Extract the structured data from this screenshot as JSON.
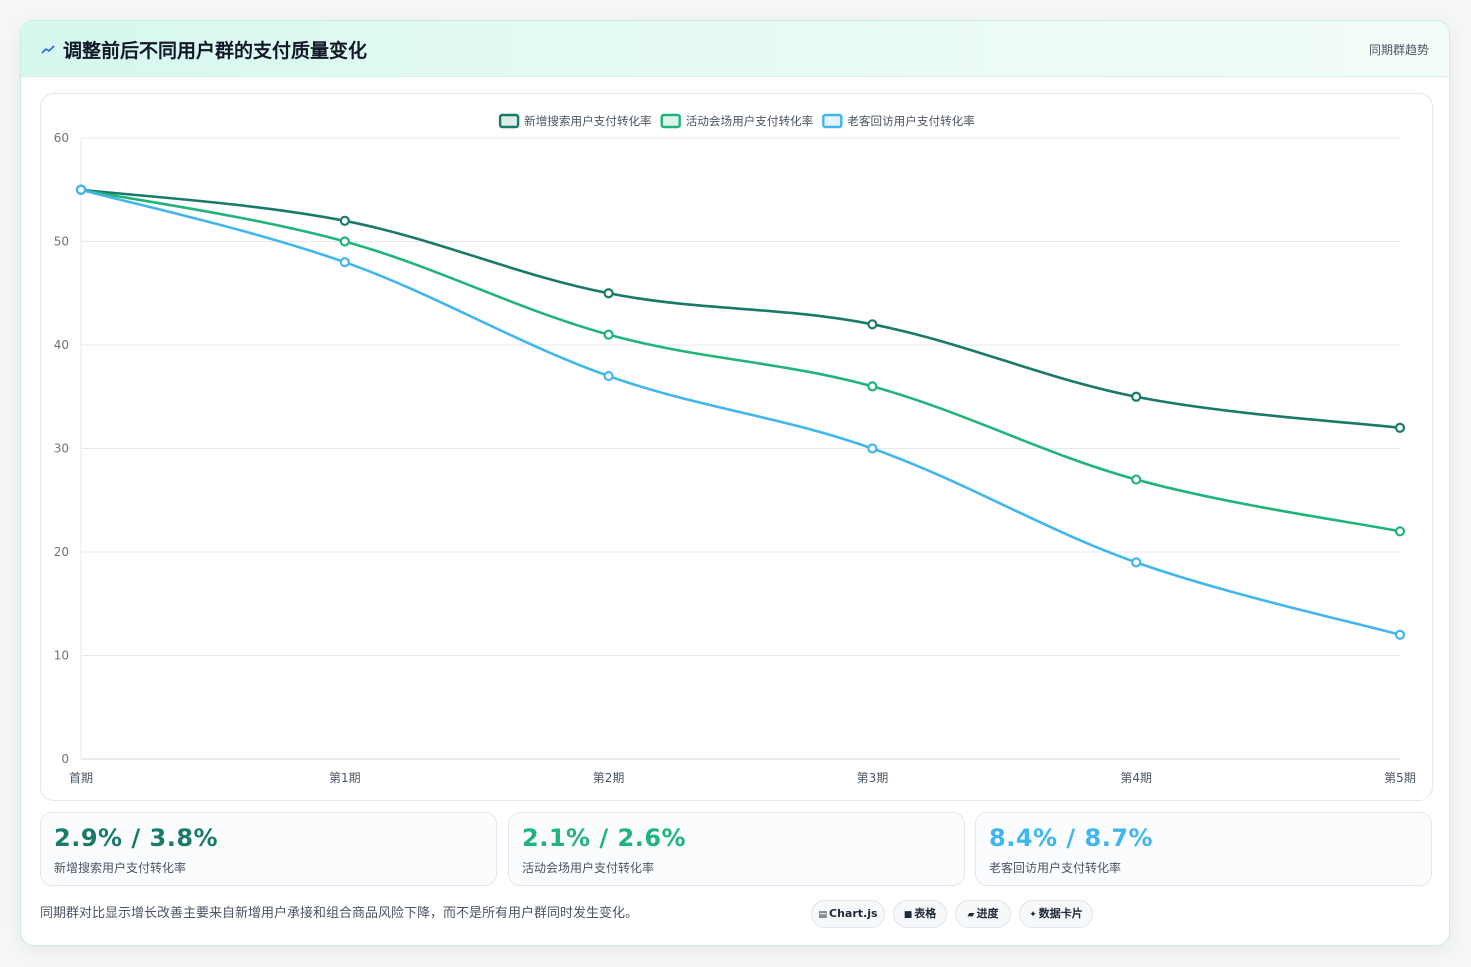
{
  "header": {
    "title": "调整前后不同用户群的支付质量变化",
    "tag": "同期群趋势"
  },
  "colors": {
    "series1": "#1a7a6a",
    "series2": "#1fb47a",
    "series3": "#3fb6ee"
  },
  "chart_data": {
    "type": "line",
    "categories": [
      "首期",
      "第1期",
      "第2期",
      "第3期",
      "第4期",
      "第5期"
    ],
    "series": [
      {
        "name": "新增搜索用户支付转化率",
        "values": [
          55,
          52,
          45,
          42,
          35,
          32
        ]
      },
      {
        "name": "活动会场用户支付转化率",
        "values": [
          55,
          50,
          41,
          36,
          27,
          22
        ]
      },
      {
        "name": "老客回访用户支付转化率",
        "values": [
          55,
          48,
          37,
          30,
          19,
          12
        ]
      }
    ],
    "yticks": [
      "0",
      "10",
      "20",
      "30",
      "40",
      "50",
      "60"
    ],
    "ylim": [
      0,
      60
    ],
    "grid": true,
    "legend": "top-center"
  },
  "stats": [
    {
      "value": "2.9% / 3.8%",
      "label": "新增搜索用户支付转化率"
    },
    {
      "value": "2.1% / 2.6%",
      "label": "活动会场用户支付转化率"
    },
    {
      "value": "8.4% / 8.7%",
      "label": "老客回访用户支付转化率"
    }
  ],
  "footer": {
    "note": "同期群对比显示增长改善主要来自新增用户承接和组合商品风险下降，而不是所有用户群同时发生变化。",
    "pills": [
      {
        "icon": "chart-icon",
        "glyph": "▤",
        "label": "Chart.js"
      },
      {
        "icon": "table-icon",
        "glyph": "■",
        "label": "表格"
      },
      {
        "icon": "progress-icon",
        "glyph": "▰",
        "label": "进度"
      },
      {
        "icon": "sparkle-icon",
        "glyph": "✦",
        "label": "数据卡片"
      }
    ]
  }
}
